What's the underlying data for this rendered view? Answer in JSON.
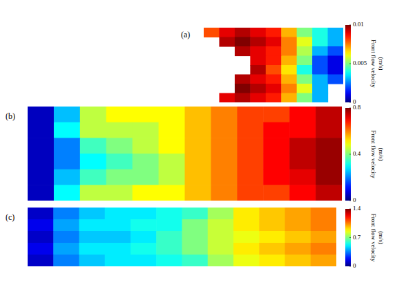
{
  "chart_data": [
    {
      "type": "heatmap",
      "label": "(a)",
      "colorbar_label": "Front flow velocity (m/s)",
      "color_range": [
        0,
        0.01
      ],
      "color_ticks": [
        0,
        0.005,
        0.01
      ],
      "cells": [
        [
          0.008,
          0.009,
          0.0095,
          0.009,
          0.0085,
          0.007,
          0.005,
          0.004,
          0.003
        ],
        [
          null,
          0.0095,
          0.01,
          0.0095,
          0.009,
          0.0075,
          0.006,
          0.004,
          0.003
        ],
        [
          null,
          null,
          0.0095,
          0.009,
          0.0085,
          0.0075,
          0.0055,
          0.003,
          0.002
        ],
        [
          null,
          null,
          null,
          0.009,
          0.0085,
          0.007,
          0.005,
          0.002,
          0.001
        ],
        [
          null,
          null,
          null,
          0.0095,
          0.008,
          0.0065,
          0.004,
          0.002,
          0.001
        ],
        [
          null,
          null,
          0.0095,
          0.009,
          0.0085,
          0.007,
          0.005,
          0.003,
          0.002
        ],
        [
          null,
          null,
          0.01,
          0.0095,
          0.009,
          0.0075,
          0.006,
          0.003,
          null
        ],
        [
          null,
          0.009,
          0.0095,
          0.009,
          0.0085,
          0.007,
          0.005,
          0.003,
          null
        ]
      ]
    },
    {
      "type": "heatmap",
      "label": "(b)",
      "colorbar_label": "Front flow velocity (m/s)",
      "color_range": [
        0,
        0.8
      ],
      "color_ticks": [
        0,
        0.4,
        0.8
      ],
      "cells": [
        [
          0.05,
          0.25,
          0.45,
          0.5,
          0.5,
          0.5,
          0.55,
          0.6,
          0.65,
          0.65,
          0.7,
          0.75
        ],
        [
          0.05,
          0.3,
          0.45,
          0.45,
          0.45,
          0.5,
          0.55,
          0.6,
          0.65,
          0.7,
          0.7,
          0.75
        ],
        [
          0.05,
          0.2,
          0.35,
          0.4,
          0.45,
          0.5,
          0.55,
          0.6,
          0.65,
          0.7,
          0.75,
          0.78
        ],
        [
          0.05,
          0.2,
          0.3,
          0.35,
          0.4,
          0.45,
          0.55,
          0.6,
          0.65,
          0.7,
          0.75,
          0.78
        ],
        [
          0.05,
          0.25,
          0.35,
          0.4,
          0.4,
          0.45,
          0.55,
          0.6,
          0.65,
          0.7,
          0.72,
          0.78
        ],
        [
          0.05,
          0.3,
          0.45,
          0.45,
          0.5,
          0.5,
          0.55,
          0.6,
          0.65,
          0.65,
          0.7,
          0.75
        ]
      ]
    },
    {
      "type": "heatmap",
      "label": "(c)",
      "colorbar_label": "Front flow velocity (m/s)",
      "color_range": [
        0,
        1.4
      ],
      "color_ticks": [
        0,
        0.7,
        1.4
      ],
      "cells": [
        [
          0.1,
          0.35,
          0.45,
          0.5,
          0.5,
          0.55,
          0.6,
          0.75,
          0.9,
          0.95,
          1.0,
          1.05
        ],
        [
          0.15,
          0.4,
          0.5,
          0.5,
          0.55,
          0.55,
          0.7,
          0.8,
          0.9,
          0.95,
          1.0,
          1.05
        ],
        [
          0.1,
          0.35,
          0.45,
          0.45,
          0.5,
          0.6,
          0.7,
          0.8,
          0.85,
          0.9,
          0.95,
          1.0
        ],
        [
          0.15,
          0.4,
          0.5,
          0.5,
          0.55,
          0.6,
          0.7,
          0.8,
          0.9,
          0.95,
          1.0,
          1.05
        ],
        [
          0.1,
          0.35,
          0.45,
          0.5,
          0.5,
          0.55,
          0.6,
          0.75,
          0.85,
          0.9,
          0.95,
          1.0
        ]
      ]
    }
  ]
}
